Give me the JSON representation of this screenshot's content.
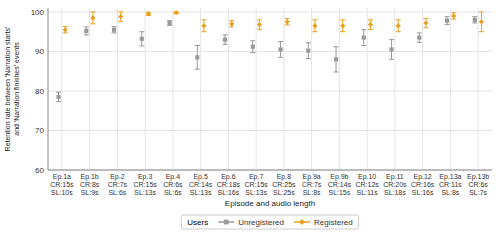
{
  "chart_data": {
    "type": "errorbar",
    "categories": [
      "Ep.1a\nCR:15s\nSL:10s",
      "Ep.1b\nCR:8s\nSL:9s",
      "Ep.2\nCR:7s\nSL:6s",
      "Ep.3\nCR:15s\nSL:13s",
      "Ep.4\nCR:6s\nSL:6s",
      "Ep.5\nCR:14s\nSL:13s",
      "Ep.6\nCR:18s\nSL:16s",
      "Ep.7\nCR:15s\nSL:13s",
      "Ep.8\nCR:25s\nSL:25s",
      "Ep.9a\nCR:7s\nSL:8s",
      "Ep.9b\nCR:14s\nSL:15s",
      "Ep.10\nCR:12s\nSL:11s",
      "Ep.11\nCR:20s\nSL:18s",
      "Ep.12\nCR:16s\nSL:16s",
      "Ep.13a\nCR:11s\nSL:8s",
      "Ep.13b\nCR:6s\nSL:7s"
    ],
    "series": [
      {
        "name": "Unregistered",
        "color": "#999999",
        "marker": "square",
        "values": [
          78.5,
          95.2,
          95.5,
          93.2,
          97.2,
          88.5,
          93.0,
          91.2,
          90.5,
          90.2,
          88.0,
          93.5,
          90.5,
          93.5,
          97.8,
          98.0
        ],
        "error_low": [
          1.2,
          1.0,
          0.8,
          1.8,
          0.6,
          3.0,
          1.2,
          1.5,
          2.0,
          2.0,
          3.2,
          2.0,
          2.5,
          1.2,
          1.0,
          0.8
        ],
        "error_high": [
          1.2,
          1.0,
          0.8,
          1.8,
          0.6,
          3.0,
          1.2,
          1.5,
          2.0,
          2.0,
          3.2,
          2.0,
          2.5,
          1.2,
          1.0,
          0.8
        ]
      },
      {
        "name": "Registered",
        "color": "#E8A020",
        "marker": "diamond",
        "values": [
          95.5,
          98.5,
          98.8,
          99.5,
          99.8,
          96.5,
          97.0,
          96.8,
          97.5,
          96.5,
          96.5,
          96.8,
          96.5,
          97.2,
          99.0,
          97.5
        ],
        "error_low": [
          0.8,
          1.5,
          1.2,
          0.4,
          0.2,
          1.5,
          0.8,
          1.2,
          0.8,
          1.5,
          1.5,
          1.2,
          1.5,
          1.2,
          0.8,
          2.5
        ],
        "error_high": [
          0.8,
          1.5,
          1.2,
          0.4,
          0.2,
          1.5,
          0.8,
          1.2,
          0.8,
          1.5,
          1.5,
          1.2,
          1.5,
          1.2,
          0.8,
          2.5
        ]
      }
    ],
    "ylabel": "Retention rate between 'Narration starts'\nand 'Narration finishes' events",
    "xlabel": "Episode and audio length",
    "ylim": [
      60,
      101
    ],
    "yticks": [
      60,
      70,
      80,
      90,
      100
    ],
    "grid": true,
    "legend": "bottom",
    "legend_title": "Users"
  }
}
